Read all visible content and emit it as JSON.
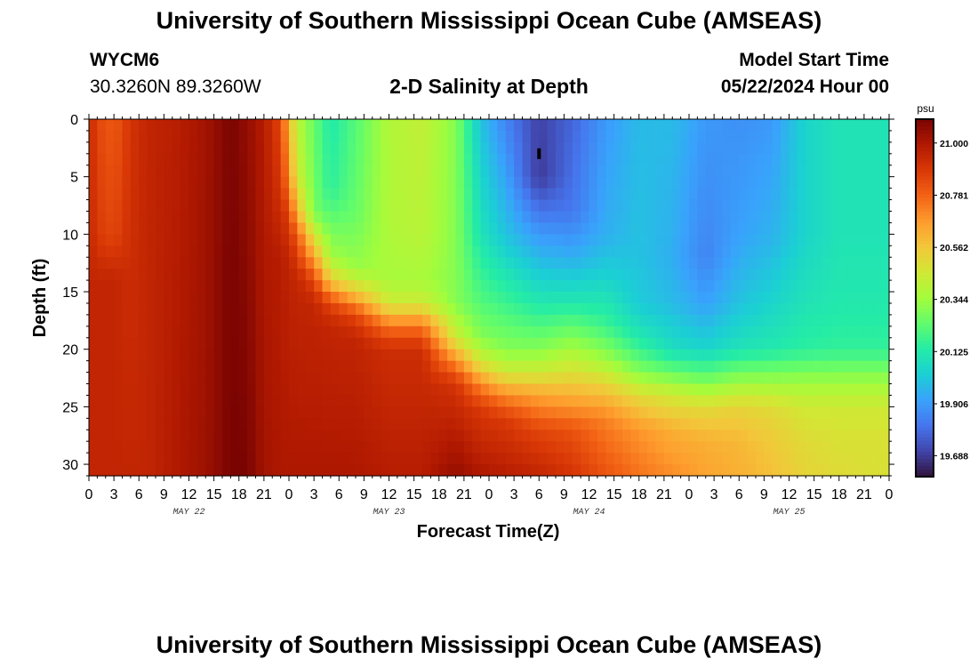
{
  "page": {
    "title_top": "University of Southern Mississippi Ocean Cube (AMSEAS)",
    "title_bottom": "University of Southern Mississippi Ocean Cube (AMSEAS)",
    "station_id": "WYCM6",
    "station_coords": "30.3260N  89.3260W",
    "model_start_label": "Model Start Time",
    "model_start_value": "05/22/2024 Hour 00"
  },
  "chart_data": {
    "type": "heatmap",
    "title": "2-D Salinity at Depth",
    "xlabel": "Forecast Time(Z)",
    "ylabel": "Depth (ft)",
    "colorbar_unit": "psu",
    "x_range_hours": [
      0,
      96
    ],
    "y_range_ft": [
      0,
      31
    ],
    "x_tick_labels": [
      "0",
      "3",
      "6",
      "9",
      "12",
      "15",
      "18",
      "21",
      "0",
      "3",
      "6",
      "9",
      "12",
      "15",
      "18",
      "21",
      "0",
      "3",
      "6",
      "9",
      "12",
      "15",
      "18",
      "21",
      "0",
      "3",
      "6",
      "9",
      "12",
      "15",
      "18",
      "21",
      "0"
    ],
    "y_ticks": [
      0,
      5,
      10,
      15,
      20,
      25,
      30
    ],
    "day_labels": [
      {
        "label": "MAY 22",
        "hour": 12
      },
      {
        "label": "MAY 23",
        "hour": 36
      },
      {
        "label": "MAY 24",
        "hour": 60
      },
      {
        "label": "MAY 25",
        "hour": 84
      }
    ],
    "colorbar_ticks": [
      "21.000",
      "20.781",
      "20.562",
      "20.344",
      "20.125",
      "19.906",
      "19.688"
    ],
    "value_range": [
      19.6,
      21.1
    ],
    "colormap": [
      "#30123b",
      "#4145ab",
      "#4675ed",
      "#39a2fc",
      "#1bcfd4",
      "#24eca6",
      "#61fc6c",
      "#a4fc3b",
      "#d1e834",
      "#f3c63a",
      "#fe9b2d",
      "#f36315",
      "#d93806",
      "#b11901",
      "#7a0402"
    ],
    "marker": {
      "hour": 54,
      "depth_ft": 3
    },
    "columns": [
      {
        "hour": 0,
        "profile": [
          [
            0,
            20.95
          ],
          [
            31,
            20.95
          ]
        ]
      },
      {
        "hour": 1,
        "profile": [
          [
            0,
            20.85
          ],
          [
            10,
            20.88
          ],
          [
            14,
            20.95
          ],
          [
            31,
            20.95
          ]
        ]
      },
      {
        "hour": 3,
        "profile": [
          [
            0,
            20.8
          ],
          [
            10,
            20.85
          ],
          [
            14,
            20.95
          ],
          [
            31,
            20.95
          ]
        ]
      },
      {
        "hour": 5,
        "profile": [
          [
            0,
            20.9
          ],
          [
            31,
            20.95
          ]
        ]
      },
      {
        "hour": 7,
        "profile": [
          [
            0,
            20.95
          ],
          [
            31,
            20.95
          ]
        ]
      },
      {
        "hour": 11,
        "profile": [
          [
            0,
            20.98
          ],
          [
            31,
            21.0
          ]
        ]
      },
      {
        "hour": 14,
        "profile": [
          [
            0,
            21.02
          ],
          [
            31,
            21.03
          ]
        ]
      },
      {
        "hour": 17,
        "profile": [
          [
            0,
            21.1
          ],
          [
            31,
            21.1
          ]
        ]
      },
      {
        "hour": 19,
        "profile": [
          [
            0,
            21.05
          ],
          [
            31,
            21.1
          ]
        ]
      },
      {
        "hour": 21,
        "profile": [
          [
            0,
            20.98
          ],
          [
            31,
            21.02
          ]
        ]
      },
      {
        "hour": 23,
        "profile": [
          [
            0,
            20.85
          ],
          [
            6,
            20.9
          ],
          [
            12,
            20.98
          ],
          [
            31,
            21.0
          ]
        ]
      },
      {
        "hour": 24,
        "profile": [
          [
            0,
            20.6
          ],
          [
            5,
            20.7
          ],
          [
            8,
            20.85
          ],
          [
            12,
            20.95
          ],
          [
            31,
            21.0
          ]
        ]
      },
      {
        "hour": 25,
        "profile": [
          [
            0,
            20.4
          ],
          [
            5,
            20.45
          ],
          [
            8,
            20.6
          ],
          [
            10,
            20.8
          ],
          [
            14,
            20.95
          ],
          [
            31,
            21.0
          ]
        ]
      },
      {
        "hour": 27,
        "profile": [
          [
            0,
            20.25
          ],
          [
            8,
            20.28
          ],
          [
            10,
            20.45
          ],
          [
            12,
            20.65
          ],
          [
            14,
            20.85
          ],
          [
            16,
            20.95
          ],
          [
            31,
            21.0
          ]
        ]
      },
      {
        "hour": 29,
        "profile": [
          [
            0,
            20.12
          ],
          [
            6,
            20.15
          ],
          [
            9,
            20.25
          ],
          [
            12,
            20.35
          ],
          [
            14,
            20.55
          ],
          [
            16,
            20.85
          ],
          [
            18,
            20.95
          ],
          [
            31,
            21.0
          ]
        ]
      },
      {
        "hour": 32,
        "profile": [
          [
            0,
            20.22
          ],
          [
            8,
            20.25
          ],
          [
            13,
            20.33
          ],
          [
            15,
            20.55
          ],
          [
            17,
            20.85
          ],
          [
            19,
            20.95
          ],
          [
            31,
            21.0
          ]
        ]
      },
      {
        "hour": 36,
        "profile": [
          [
            0,
            20.38
          ],
          [
            8,
            20.38
          ],
          [
            14,
            20.36
          ],
          [
            16,
            20.45
          ],
          [
            18,
            20.75
          ],
          [
            20,
            20.92
          ],
          [
            31,
            20.98
          ]
        ]
      },
      {
        "hour": 40,
        "profile": [
          [
            0,
            20.42
          ],
          [
            10,
            20.4
          ],
          [
            14,
            20.36
          ],
          [
            16,
            20.45
          ],
          [
            18,
            20.75
          ],
          [
            20,
            20.92
          ],
          [
            31,
            20.98
          ]
        ]
      },
      {
        "hour": 44,
        "profile": [
          [
            0,
            20.3
          ],
          [
            10,
            20.3
          ],
          [
            16,
            20.3
          ],
          [
            19,
            20.45
          ],
          [
            21,
            20.7
          ],
          [
            23,
            20.9
          ],
          [
            31,
            21.05
          ]
        ]
      },
      {
        "hour": 47,
        "profile": [
          [
            0,
            20.0
          ],
          [
            10,
            20.1
          ],
          [
            16,
            20.22
          ],
          [
            19,
            20.3
          ],
          [
            21,
            20.45
          ],
          [
            23,
            20.7
          ],
          [
            25,
            20.88
          ],
          [
            31,
            21.0
          ]
        ]
      },
      {
        "hour": 50,
        "profile": [
          [
            0,
            19.85
          ],
          [
            10,
            20.0
          ],
          [
            16,
            20.18
          ],
          [
            20,
            20.3
          ],
          [
            22,
            20.45
          ],
          [
            24,
            20.7
          ],
          [
            26,
            20.88
          ],
          [
            31,
            20.98
          ]
        ]
      },
      {
        "hour": 54,
        "profile": [
          [
            0,
            19.7
          ],
          [
            5,
            19.68
          ],
          [
            10,
            19.9
          ],
          [
            16,
            20.12
          ],
          [
            20,
            20.3
          ],
          [
            22,
            20.45
          ],
          [
            24,
            20.65
          ],
          [
            27,
            20.85
          ],
          [
            31,
            20.95
          ]
        ]
      },
      {
        "hour": 58,
        "profile": [
          [
            0,
            19.78
          ],
          [
            8,
            19.82
          ],
          [
            12,
            19.95
          ],
          [
            16,
            20.12
          ],
          [
            19,
            20.3
          ],
          [
            21,
            20.42
          ],
          [
            24,
            20.62
          ],
          [
            27,
            20.82
          ],
          [
            31,
            20.9
          ]
        ]
      },
      {
        "hour": 62,
        "profile": [
          [
            0,
            19.9
          ],
          [
            10,
            19.95
          ],
          [
            14,
            20.05
          ],
          [
            18,
            20.18
          ],
          [
            21,
            20.35
          ],
          [
            23,
            20.52
          ],
          [
            26,
            20.72
          ],
          [
            31,
            20.82
          ]
        ]
      },
      {
        "hour": 66,
        "profile": [
          [
            0,
            19.98
          ],
          [
            12,
            20.0
          ],
          [
            16,
            20.02
          ],
          [
            19,
            20.12
          ],
          [
            22,
            20.3
          ],
          [
            24,
            20.5
          ],
          [
            27,
            20.68
          ],
          [
            31,
            20.75
          ]
        ]
      },
      {
        "hour": 70,
        "profile": [
          [
            0,
            19.98
          ],
          [
            12,
            19.95
          ],
          [
            16,
            19.98
          ],
          [
            20,
            20.08
          ],
          [
            22,
            20.25
          ],
          [
            24,
            20.45
          ],
          [
            27,
            20.62
          ],
          [
            31,
            20.7
          ]
        ]
      },
      {
        "hour": 74,
        "profile": [
          [
            0,
            19.9
          ],
          [
            12,
            19.85
          ],
          [
            16,
            19.92
          ],
          [
            20,
            20.05
          ],
          [
            23,
            20.3
          ],
          [
            25,
            20.5
          ],
          [
            28,
            20.62
          ],
          [
            31,
            20.65
          ]
        ]
      },
      {
        "hour": 78,
        "profile": [
          [
            0,
            19.88
          ],
          [
            10,
            19.92
          ],
          [
            16,
            20.0
          ],
          [
            20,
            20.1
          ],
          [
            23,
            20.35
          ],
          [
            25,
            20.52
          ],
          [
            28,
            20.6
          ],
          [
            31,
            20.62
          ]
        ]
      },
      {
        "hour": 82,
        "profile": [
          [
            0,
            19.9
          ],
          [
            10,
            19.96
          ],
          [
            16,
            20.05
          ],
          [
            20,
            20.12
          ],
          [
            23,
            20.35
          ],
          [
            25,
            20.5
          ],
          [
            28,
            20.55
          ],
          [
            31,
            20.58
          ]
        ]
      },
      {
        "hour": 86,
        "profile": [
          [
            0,
            20.05
          ],
          [
            10,
            20.05
          ],
          [
            16,
            20.1
          ],
          [
            20,
            20.15
          ],
          [
            23,
            20.35
          ],
          [
            25,
            20.45
          ],
          [
            28,
            20.5
          ],
          [
            31,
            20.52
          ]
        ]
      },
      {
        "hour": 90,
        "profile": [
          [
            0,
            20.1
          ],
          [
            10,
            20.1
          ],
          [
            16,
            20.12
          ],
          [
            20,
            20.16
          ],
          [
            23,
            20.35
          ],
          [
            25,
            20.45
          ],
          [
            28,
            20.48
          ],
          [
            31,
            20.5
          ]
        ]
      },
      {
        "hour": 96,
        "profile": [
          [
            0,
            20.1
          ],
          [
            10,
            20.1
          ],
          [
            16,
            20.12
          ],
          [
            20,
            20.16
          ],
          [
            23,
            20.35
          ],
          [
            25,
            20.45
          ],
          [
            28,
            20.48
          ],
          [
            31,
            20.48
          ]
        ]
      }
    ]
  }
}
